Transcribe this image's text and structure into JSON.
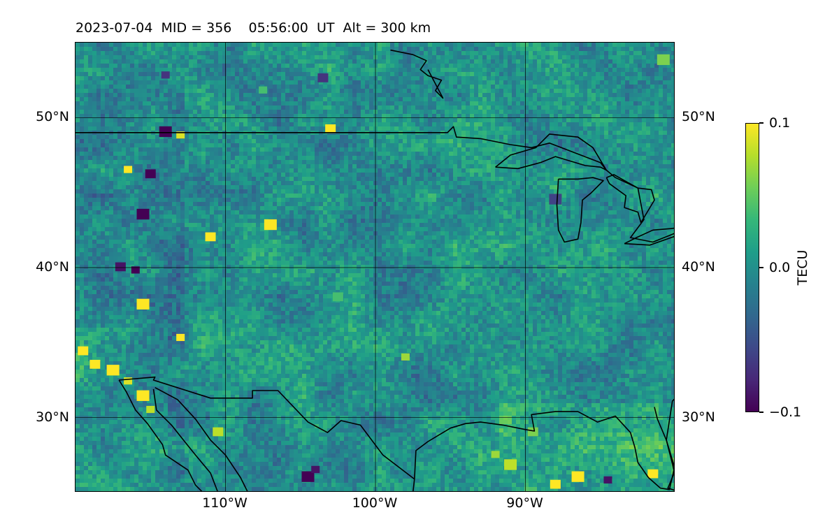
{
  "title": "2023-07-04  MID = 356    05:56:00  UT  Alt = 300 km",
  "map": {
    "projection": "plate-carree",
    "lon_range": [
      -120,
      -80
    ],
    "lat_range": [
      25,
      55
    ],
    "gridlines": true,
    "field": "TEC perturbation",
    "colormap": "viridis",
    "lat_ticks": [
      {
        "value": 50,
        "label": "50°N"
      },
      {
        "value": 40,
        "label": "40°N"
      },
      {
        "value": 30,
        "label": "30°N"
      }
    ],
    "lon_ticks": [
      {
        "value": -110,
        "label": "110°W"
      },
      {
        "value": -100,
        "label": "100°W"
      },
      {
        "value": -90,
        "label": "90°W"
      }
    ]
  },
  "colorbar": {
    "label": "TECU",
    "min": -0.1,
    "max": 0.1,
    "ticks": [
      {
        "value": 0.1,
        "label": "0.1"
      },
      {
        "value": 0.0,
        "label": "0.0"
      },
      {
        "value": -0.1,
        "label": "−0.1"
      }
    ]
  },
  "colors": {
    "viridis": [
      "#440154",
      "#482878",
      "#3e4989",
      "#31688e",
      "#26828e",
      "#1f9e89",
      "#35b779",
      "#6ece58",
      "#b5de2b",
      "#fde725"
    ]
  },
  "blobs": [
    {
      "lon": -116.5,
      "lat": 46.5,
      "value": 0.1
    },
    {
      "lon": -115,
      "lat": 46.2,
      "value": -0.1
    },
    {
      "lon": -114,
      "lat": 49,
      "value": -0.1
    },
    {
      "lon": -113,
      "lat": 48.8,
      "value": 0.09
    },
    {
      "lon": -103,
      "lat": 49.2,
      "value": 0.1
    },
    {
      "lon": -115.5,
      "lat": 43.5,
      "value": -0.1
    },
    {
      "lon": -114,
      "lat": 52.8,
      "value": -0.07
    },
    {
      "lon": -111,
      "lat": 42,
      "value": 0.1
    },
    {
      "lon": -107,
      "lat": 42.8,
      "value": 0.1
    },
    {
      "lon": -116,
      "lat": 39.8,
      "value": -0.1
    },
    {
      "lon": -117,
      "lat": 40,
      "value": -0.09
    },
    {
      "lon": -115.5,
      "lat": 37.5,
      "value": 0.1
    },
    {
      "lon": -113,
      "lat": 35.3,
      "value": 0.1
    },
    {
      "lon": -118.7,
      "lat": 33.5,
      "value": 0.1
    },
    {
      "lon": -117.5,
      "lat": 33.1,
      "value": 0.1
    },
    {
      "lon": -116.5,
      "lat": 32.4,
      "value": 0.09
    },
    {
      "lon": -119.5,
      "lat": 34.4,
      "value": 0.1
    },
    {
      "lon": -115.5,
      "lat": 31.4,
      "value": 0.1
    },
    {
      "lon": -115,
      "lat": 30.5,
      "value": 0.08
    },
    {
      "lon": -110.5,
      "lat": 29,
      "value": 0.08
    },
    {
      "lon": -104.5,
      "lat": 26,
      "value": -0.1
    },
    {
      "lon": -104,
      "lat": 26.5,
      "value": -0.09
    },
    {
      "lon": -103.5,
      "lat": 52.6,
      "value": -0.07
    },
    {
      "lon": -80.8,
      "lat": 53.8,
      "value": 0.06
    },
    {
      "lon": -98,
      "lat": 34,
      "value": 0.07
    },
    {
      "lon": -88,
      "lat": 25.5,
      "value": 0.1
    },
    {
      "lon": -86.5,
      "lat": 26,
      "value": 0.1
    },
    {
      "lon": -84.5,
      "lat": 25.8,
      "value": -0.09
    },
    {
      "lon": -81.5,
      "lat": 26.2,
      "value": 0.1
    },
    {
      "lon": -91,
      "lat": 26.8,
      "value": 0.08
    },
    {
      "lon": -92,
      "lat": 27.5,
      "value": 0.07
    },
    {
      "lon": -89.5,
      "lat": 29,
      "value": 0.06
    },
    {
      "lon": -88,
      "lat": 44.5,
      "value": -0.06
    },
    {
      "lon": -107.5,
      "lat": 51.8,
      "value": 0.04
    },
    {
      "lon": -102.5,
      "lat": 38,
      "value": 0.04
    }
  ],
  "boundaries": {
    "us_canada": [
      [
        -120,
        49
      ],
      [
        -95.2,
        49
      ],
      [
        -94.8,
        49.4
      ],
      [
        -94.6,
        48.7
      ],
      [
        -93,
        48.6
      ],
      [
        -91,
        48.2
      ],
      [
        -89.6,
        48
      ],
      [
        -88.4,
        48.3
      ],
      [
        -85,
        47
      ],
      [
        -84.6,
        46.5
      ],
      [
        -84,
        46
      ],
      [
        -82.5,
        45.3
      ],
      [
        -82.1,
        43.2
      ],
      [
        -83,
        42
      ],
      [
        -81.5,
        41.7
      ],
      [
        -79,
        42.7
      ],
      [
        -80,
        43.5
      ],
      [
        -80,
        43.6
      ]
    ],
    "lake_superior": [
      [
        -92,
        46.7
      ],
      [
        -90.5,
        46.6
      ],
      [
        -89,
        47
      ],
      [
        -88,
        47.4
      ],
      [
        -86,
        46.8
      ],
      [
        -85,
        46.7
      ],
      [
        -84.6,
        46.5
      ],
      [
        -85.5,
        48
      ],
      [
        -86.5,
        48.7
      ],
      [
        -88.4,
        48.9
      ],
      [
        -89.3,
        48
      ],
      [
        -91,
        47.5
      ],
      [
        -92,
        46.7
      ]
    ],
    "lake_michigan": [
      [
        -87.8,
        45.9
      ],
      [
        -87.9,
        44.2
      ],
      [
        -87.8,
        42.5
      ],
      [
        -87.4,
        41.7
      ],
      [
        -86.5,
        41.9
      ],
      [
        -86.3,
        43
      ],
      [
        -86.2,
        44.5
      ],
      [
        -85.6,
        45
      ],
      [
        -84.8,
        45.8
      ],
      [
        -85.5,
        46
      ],
      [
        -86.5,
        45.9
      ],
      [
        -87.8,
        45.9
      ]
    ],
    "lake_huron": [
      [
        -84.6,
        46
      ],
      [
        -84.1,
        46.2
      ],
      [
        -83.4,
        45.8
      ],
      [
        -82.5,
        45.3
      ],
      [
        -81.6,
        45.2
      ],
      [
        -81.4,
        44.5
      ],
      [
        -82.3,
        43
      ],
      [
        -82.5,
        43.7
      ],
      [
        -83.4,
        44
      ],
      [
        -83.3,
        44.8
      ],
      [
        -84.4,
        45.6
      ],
      [
        -84.6,
        46
      ]
    ],
    "lake_erie": [
      [
        -83.4,
        41.6
      ],
      [
        -81.7,
        41.5
      ],
      [
        -80,
        42.1
      ],
      [
        -79,
        42.8
      ],
      [
        -80.3,
        42.6
      ],
      [
        -81.5,
        42.5
      ],
      [
        -82.6,
        42
      ],
      [
        -83.4,
        41.6
      ]
    ],
    "lake_ontario": [
      [
        -79.8,
        43.3
      ],
      [
        -78.5,
        43.4
      ],
      [
        -77,
        43.3
      ],
      [
        -76.3,
        43.5
      ],
      [
        -77,
        44
      ],
      [
        -78.5,
        43.9
      ],
      [
        -79.5,
        43.7
      ],
      [
        -79.8,
        43.3
      ]
    ],
    "us_mexico": [
      [
        -117.1,
        32.5
      ],
      [
        -114.7,
        32.7
      ],
      [
        -114.8,
        32.5
      ],
      [
        -111,
        31.3
      ],
      [
        -108.2,
        31.3
      ],
      [
        -108.2,
        31.8
      ],
      [
        -106.5,
        31.8
      ],
      [
        -104.5,
        29.7
      ],
      [
        -103.2,
        29
      ],
      [
        -102.3,
        29.8
      ],
      [
        -101,
        29.5
      ],
      [
        -99.5,
        27.5
      ],
      [
        -97.4,
        25.9
      ],
      [
        -97.5,
        25
      ]
    ],
    "gulf_coast": [
      [
        -97.4,
        25.9
      ],
      [
        -97.3,
        27.8
      ],
      [
        -96.5,
        28.4
      ],
      [
        -95,
        29.3
      ],
      [
        -94,
        29.6
      ],
      [
        -93,
        29.7
      ],
      [
        -91.5,
        29.5
      ],
      [
        -90,
        29.2
      ],
      [
        -89.4,
        29.1
      ],
      [
        -89.6,
        30.2
      ],
      [
        -88,
        30.4
      ],
      [
        -86.5,
        30.4
      ],
      [
        -85.2,
        29.7
      ],
      [
        -84,
        30.1
      ],
      [
        -83,
        29
      ],
      [
        -82.7,
        28
      ],
      [
        -82.5,
        27
      ],
      [
        -81.8,
        26
      ],
      [
        -81,
        25.3
      ],
      [
        -80.4,
        25.2
      ],
      [
        -80.1,
        26.5
      ],
      [
        -80.6,
        28.5
      ],
      [
        -81.2,
        29.9
      ],
      [
        -81.4,
        30.7
      ]
    ],
    "mexico_pacific": [
      [
        -117.1,
        32.5
      ],
      [
        -116.6,
        31.7
      ],
      [
        -116,
        30.5
      ],
      [
        -115.2,
        29.6
      ],
      [
        -114.2,
        28.2
      ],
      [
        -114,
        27.5
      ],
      [
        -112.5,
        26.5
      ],
      [
        -112,
        25.5
      ],
      [
        -111.5,
        25
      ]
    ],
    "gulf_california": [
      [
        -114.8,
        31.9
      ],
      [
        -114.6,
        30.5
      ],
      [
        -113.6,
        29.5
      ],
      [
        -112.8,
        28.5
      ],
      [
        -112,
        27.5
      ],
      [
        -111,
        26.3
      ],
      [
        -110.5,
        25
      ]
    ],
    "mexico_mainland": [
      [
        -114.7,
        32
      ],
      [
        -113.2,
        31.2
      ],
      [
        -112,
        29.9
      ],
      [
        -111,
        28.5
      ],
      [
        -110,
        27.5
      ],
      [
        -109,
        26
      ],
      [
        -108.5,
        25
      ]
    ],
    "bahamas_hint": [
      [
        -79.9,
        32.5
      ],
      [
        -80,
        33
      ]
    ],
    "hudson": [
      [
        -80,
        55
      ],
      [
        -80,
        53.5
      ],
      [
        -79,
        52.5
      ]
    ],
    "atlantic": [
      [
        -79,
        32.3
      ],
      [
        -80.2,
        31.1
      ],
      [
        -80.6,
        28.5
      ],
      [
        -80,
        26.5
      ],
      [
        -80.5,
        25.3
      ],
      [
        -79.6,
        25
      ]
    ],
    "hudson_bay_south": [
      [
        -99,
        54.5
      ],
      [
        -97.5,
        54.2
      ],
      [
        -96.6,
        53.8
      ],
      [
        -97,
        53.2
      ],
      [
        -96.5,
        52.8
      ],
      [
        -95.6,
        52.5
      ],
      [
        -96,
        51.8
      ],
      [
        -95.5,
        51.3
      ],
      [
        -96.5,
        53.2
      ]
    ]
  }
}
